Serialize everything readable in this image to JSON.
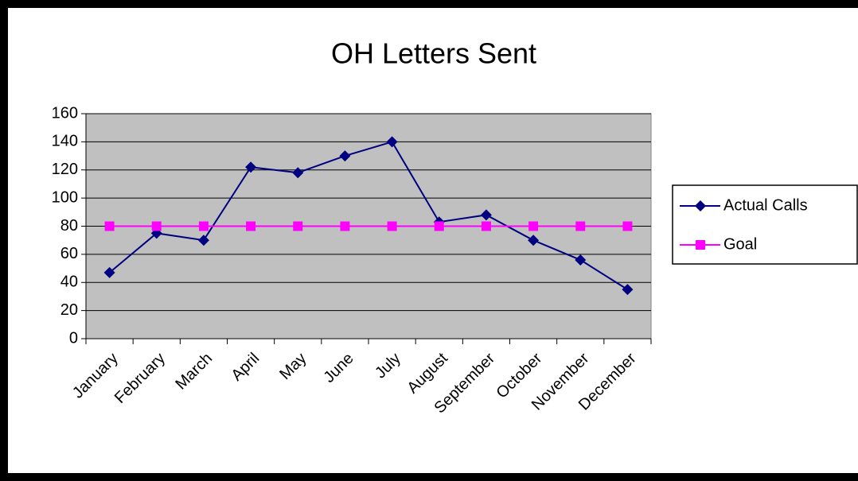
{
  "chart_data": {
    "type": "line",
    "title": "OH Letters Sent",
    "categories": [
      "January",
      "February",
      "March",
      "April",
      "May",
      "June",
      "July",
      "August",
      "September",
      "October",
      "November",
      "December"
    ],
    "series": [
      {
        "name": "Actual Calls",
        "color": "#000080",
        "marker": "diamond",
        "values": [
          47,
          75,
          70,
          122,
          118,
          130,
          140,
          83,
          88,
          70,
          56,
          35
        ]
      },
      {
        "name": "Goal",
        "color": "#ff00ff",
        "marker": "square",
        "values": [
          80,
          80,
          80,
          80,
          80,
          80,
          80,
          80,
          80,
          80,
          80,
          80
        ]
      }
    ],
    "ylim": [
      0,
      160
    ],
    "yticks": [
      0,
      20,
      40,
      60,
      80,
      100,
      120,
      140,
      160
    ],
    "grid": true,
    "legend": "right"
  }
}
